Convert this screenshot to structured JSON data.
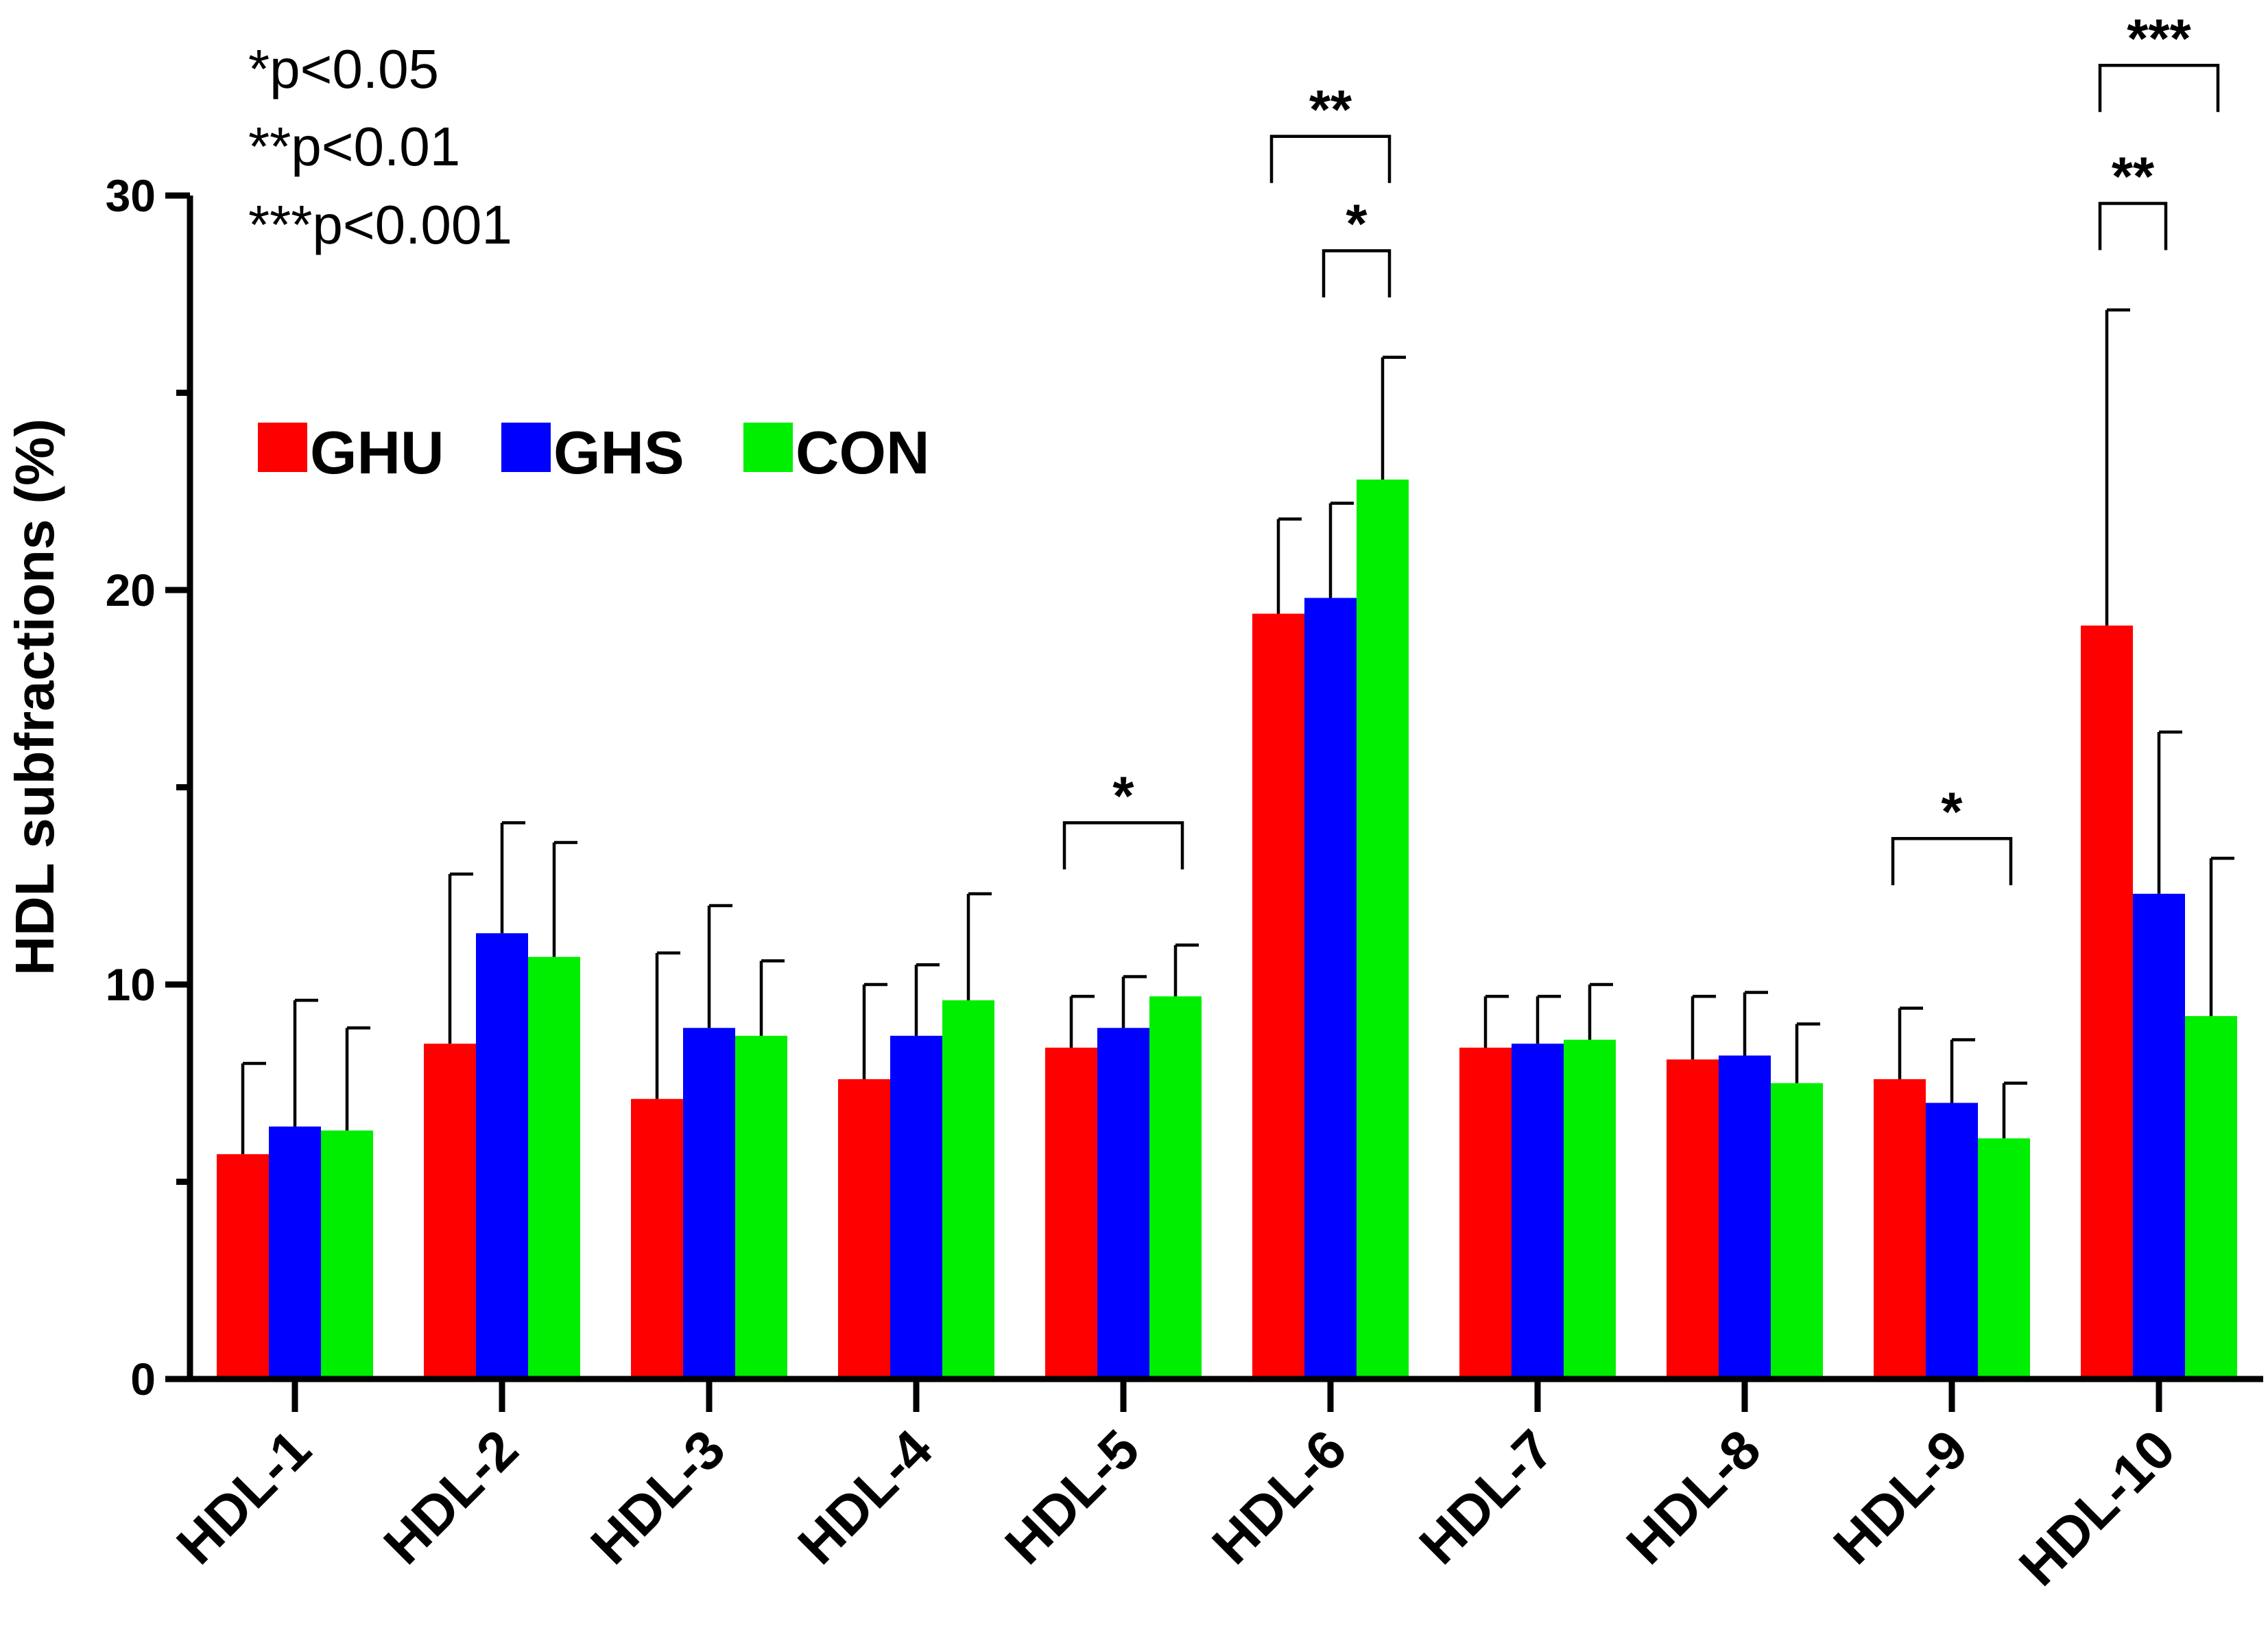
{
  "chart_data": {
    "type": "bar",
    "title": "",
    "xlabel": "",
    "ylabel": "HDL subfractions (%)",
    "ylim": [
      0,
      30
    ],
    "yticks": [
      0,
      10,
      20,
      30
    ],
    "grid": false,
    "legend_position": "top-left",
    "categories": [
      "HDL-1",
      "HDL-2",
      "HDL-3",
      "HDL-4",
      "HDL-5",
      "HDL-6",
      "HDL-7",
      "HDL-8",
      "HDL-9",
      "HDL-10"
    ],
    "series": [
      {
        "name": "GHU",
        "color": "#ff0000",
        "values": [
          5.7,
          8.5,
          7.1,
          7.6,
          8.4,
          19.4,
          8.4,
          8.1,
          7.6,
          19.1
        ],
        "error": [
          2.3,
          4.3,
          3.7,
          2.4,
          1.3,
          2.4,
          1.3,
          1.6,
          1.8,
          8.0
        ]
      },
      {
        "name": "GHS",
        "color": "#0000ff",
        "values": [
          6.4,
          11.3,
          8.9,
          8.7,
          8.9,
          19.8,
          8.5,
          8.2,
          7.0,
          12.3
        ],
        "error": [
          3.2,
          2.8,
          3.1,
          1.8,
          1.3,
          2.4,
          1.2,
          1.6,
          1.6,
          4.1
        ]
      },
      {
        "name": "CON",
        "color": "#00ee00",
        "values": [
          6.3,
          10.7,
          8.7,
          9.6,
          9.7,
          22.8,
          8.6,
          7.5,
          6.1,
          9.2
        ],
        "error": [
          2.6,
          2.9,
          1.9,
          2.7,
          1.3,
          3.1,
          1.4,
          1.5,
          1.4,
          4.0
        ]
      }
    ],
    "significance": [
      {
        "category": "HDL-5",
        "from": "GHU",
        "to": "CON",
        "label": "*"
      },
      {
        "category": "HDL-6",
        "from": "GHU",
        "to": "CON",
        "label": "**"
      },
      {
        "category": "HDL-6",
        "from": "GHS",
        "to": "CON",
        "label": "*"
      },
      {
        "category": "HDL-9",
        "from": "GHU",
        "to": "CON",
        "label": "*"
      },
      {
        "category": "HDL-10",
        "from": "GHU",
        "to": "CON",
        "label": "***"
      },
      {
        "category": "HDL-10",
        "from": "GHU",
        "to": "GHS",
        "label": "**"
      }
    ],
    "p_value_notes": [
      "*p<0.05",
      "**p<0.01",
      "***p<0.001"
    ]
  }
}
